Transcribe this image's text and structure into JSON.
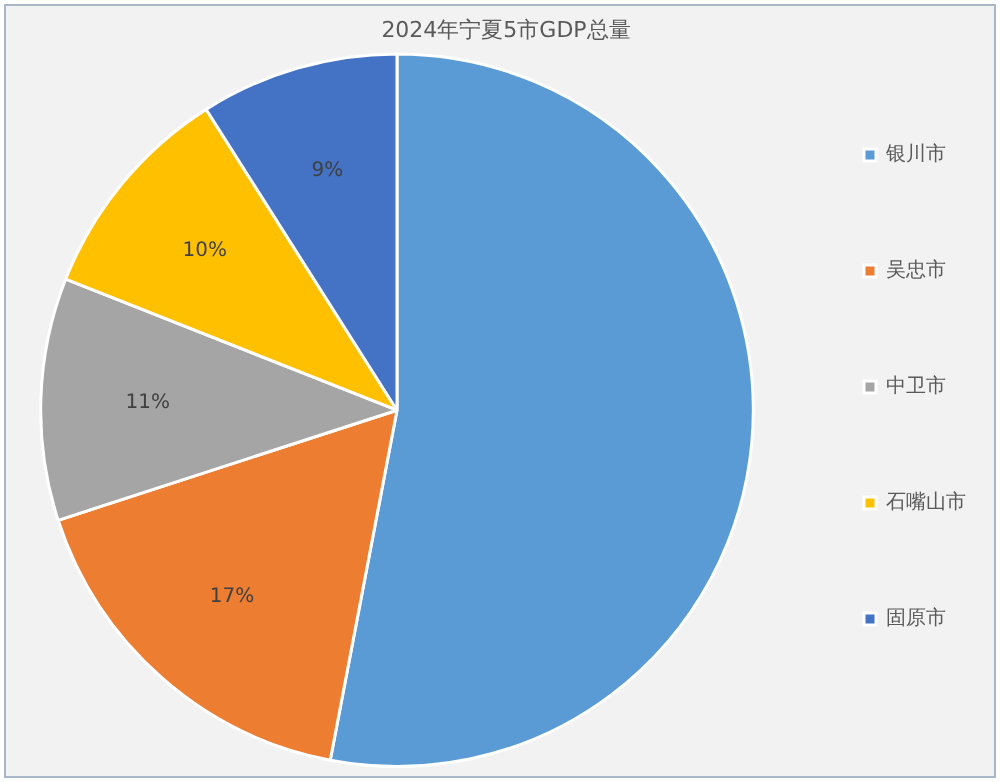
{
  "chart_data": {
    "type": "pie",
    "title": "2024年宁夏5市GDP总量",
    "categories": [
      "银川市",
      "吴忠市",
      "中卫市",
      "石嘴山市",
      "固原市"
    ],
    "values": [
      53,
      17,
      11,
      10,
      9
    ],
    "colors": [
      "#5b9bd5",
      "#ed7d31",
      "#a5a5a5",
      "#ffc000",
      "#4472c4"
    ],
    "value_labels": [
      null,
      "17%",
      "11%",
      "10%",
      "9%"
    ],
    "legend": "right"
  }
}
